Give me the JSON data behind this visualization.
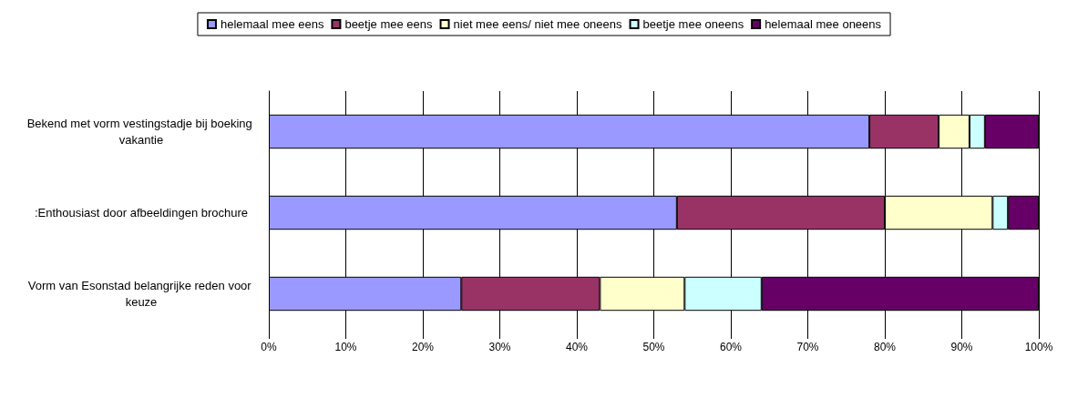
{
  "chart_data": {
    "type": "bar",
    "orientation": "horizontal",
    "stacked": true,
    "categories": [
      "Bekend met vorm vestingstadje bij boeking vakantie",
      ":Enthousiast door afbeeldingen brochure",
      "Vorm van Esonstad belangrijke reden voor keuze"
    ],
    "series": [
      {
        "name": "helemaal mee eens",
        "color": "#9999ff",
        "values": [
          78,
          53,
          25
        ]
      },
      {
        "name": "beetje mee eens",
        "color": "#993366",
        "values": [
          9,
          27,
          18
        ]
      },
      {
        "name": "niet mee eens/ niet mee oneens",
        "color": "#ffffcc",
        "values": [
          4,
          14,
          11
        ]
      },
      {
        "name": "beetje mee oneens",
        "color": "#ccffff",
        "values": [
          2,
          2,
          10
        ]
      },
      {
        "name": "helemaal mee oneens",
        "color": "#660066",
        "values": [
          7,
          4,
          36
        ]
      }
    ],
    "xlim": [
      0,
      100
    ],
    "xticks": [
      {
        "value": 0,
        "label": "0%"
      },
      {
        "value": 10,
        "label": "10%"
      },
      {
        "value": 20,
        "label": "20%"
      },
      {
        "value": 30,
        "label": "30%"
      },
      {
        "value": 40,
        "label": "40%"
      },
      {
        "value": 50,
        "label": "50%"
      },
      {
        "value": 60,
        "label": "60%"
      },
      {
        "value": 70,
        "label": "70%"
      },
      {
        "value": 80,
        "label": "80%"
      },
      {
        "value": 90,
        "label": "90%"
      },
      {
        "value": 100,
        "label": "100%"
      }
    ],
    "grid": "x",
    "legend": "top"
  }
}
